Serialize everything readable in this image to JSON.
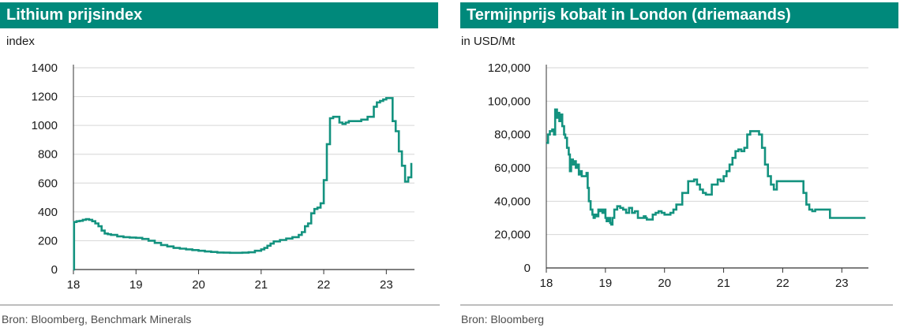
{
  "chart_data": [
    {
      "type": "line",
      "title": "Lithium prijsindex",
      "unit_label": "index",
      "source": "Bron: Bloomberg, Benchmark Minerals",
      "xlabel": "",
      "ylabel": "",
      "x_ticks": [
        18,
        19,
        20,
        21,
        22,
        23
      ],
      "xlim": [
        18,
        23.45
      ],
      "y_ticks": [
        "0",
        "200",
        "400",
        "600",
        "800",
        "1000",
        "1200",
        "1400"
      ],
      "ylim": [
        0,
        1400
      ],
      "grid": true,
      "line_color": "#13927f",
      "series": [
        {
          "x": [
            18.0,
            18.01,
            18.05,
            18.1,
            18.15,
            18.2,
            18.25,
            18.3,
            18.35,
            18.4,
            18.45,
            18.5,
            18.55,
            18.6,
            18.7,
            18.8,
            18.9,
            19.0,
            19.1,
            19.2,
            19.3,
            19.4,
            19.5,
            19.6,
            19.7,
            19.8,
            19.9,
            20.0,
            20.1,
            20.2,
            20.3,
            20.4,
            20.5,
            20.6,
            20.7,
            20.8,
            20.9,
            21.0,
            21.05,
            21.1,
            21.15,
            21.2,
            21.3,
            21.4,
            21.5,
            21.6,
            21.65,
            21.7,
            21.75,
            21.8,
            21.85,
            21.9,
            21.95,
            22.0,
            22.05,
            22.1,
            22.15,
            22.2,
            22.25,
            22.3,
            22.35,
            22.4,
            22.5,
            22.6,
            22.7,
            22.8,
            22.85,
            22.9,
            22.95,
            23.0,
            23.05,
            23.1,
            23.15,
            23.2,
            23.25,
            23.3,
            23.35,
            23.4
          ],
          "y": [
            0,
            330,
            335,
            338,
            345,
            350,
            345,
            335,
            320,
            300,
            270,
            250,
            245,
            240,
            230,
            225,
            222,
            220,
            212,
            200,
            185,
            170,
            160,
            150,
            145,
            140,
            135,
            130,
            125,
            122,
            118,
            117,
            116,
            116,
            117,
            120,
            130,
            140,
            150,
            165,
            180,
            195,
            205,
            215,
            225,
            240,
            260,
            300,
            320,
            390,
            420,
            430,
            460,
            620,
            870,
            1050,
            1060,
            1060,
            1020,
            1010,
            1020,
            1030,
            1030,
            1040,
            1060,
            1130,
            1160,
            1170,
            1180,
            1190,
            1190,
            1030,
            960,
            820,
            720,
            610,
            640,
            740
          ]
        }
      ]
    },
    {
      "type": "line",
      "title": "Termijnprijs kobalt in London (driemaands)",
      "unit_label": "in USD/Mt",
      "source": "Bron: Bloomberg",
      "xlabel": "",
      "ylabel": "",
      "x_ticks": [
        18,
        19,
        20,
        21,
        22,
        23
      ],
      "xlim": [
        18,
        23.45
      ],
      "y_ticks": [
        "0",
        "20,000",
        "40,000",
        "60,000",
        "80,000",
        "100,000",
        "120,000"
      ],
      "ylim": [
        0,
        120000
      ],
      "grid": true,
      "line_color": "#13927f",
      "series": [
        {
          "x": [
            18.0,
            18.03,
            18.06,
            18.1,
            18.13,
            18.15,
            18.18,
            18.2,
            18.22,
            18.25,
            18.27,
            18.3,
            18.32,
            18.35,
            18.38,
            18.4,
            18.42,
            18.45,
            18.47,
            18.5,
            18.52,
            18.55,
            18.58,
            18.6,
            18.62,
            18.65,
            18.68,
            18.7,
            18.72,
            18.75,
            18.78,
            18.8,
            18.82,
            18.85,
            18.88,
            18.9,
            18.92,
            18.95,
            18.98,
            19.0,
            19.02,
            19.05,
            19.08,
            19.1,
            19.12,
            19.15,
            19.2,
            19.25,
            19.3,
            19.35,
            19.4,
            19.45,
            19.5,
            19.55,
            19.6,
            19.62,
            19.65,
            19.68,
            19.7,
            19.75,
            19.8,
            19.85,
            19.9,
            19.95,
            20.0,
            20.05,
            20.1,
            20.15,
            20.2,
            20.3,
            20.4,
            20.5,
            20.55,
            20.6,
            20.65,
            20.7,
            20.8,
            20.9,
            20.95,
            21.0,
            21.05,
            21.1,
            21.15,
            21.2,
            21.25,
            21.3,
            21.35,
            21.4,
            21.45,
            21.5,
            21.55,
            21.6,
            21.65,
            21.7,
            21.75,
            21.8,
            21.85,
            21.9,
            21.95,
            22.0,
            22.05,
            22.1,
            22.15,
            22.2,
            22.25,
            22.3,
            22.35,
            22.4,
            22.45,
            22.5,
            22.55,
            22.6,
            22.65,
            22.7,
            22.75,
            22.8,
            22.85,
            22.9,
            22.95,
            23.0,
            23.05,
            23.1,
            23.15,
            23.2,
            23.25,
            23.3,
            23.35,
            23.4
          ],
          "y": [
            75000,
            80000,
            82000,
            83000,
            80000,
            95000,
            90000,
            93000,
            88000,
            92000,
            85000,
            80000,
            78000,
            72000,
            68000,
            58000,
            65000,
            62000,
            64000,
            60000,
            62000,
            56000,
            58000,
            55000,
            55000,
            55000,
            57000,
            48000,
            40000,
            35000,
            32000,
            30000,
            32000,
            31000,
            35000,
            34000,
            35000,
            33000,
            35000,
            30000,
            28000,
            30000,
            27000,
            26000,
            30000,
            35000,
            37000,
            36000,
            35000,
            33000,
            36000,
            33000,
            34000,
            30000,
            30000,
            30000,
            31000,
            30000,
            29000,
            29000,
            32000,
            33000,
            34000,
            33000,
            32000,
            32000,
            33000,
            35000,
            38000,
            45000,
            52000,
            53000,
            50000,
            47000,
            45000,
            44000,
            50000,
            53000,
            52000,
            55000,
            58000,
            62000,
            66000,
            70000,
            71000,
            70000,
            72000,
            80000,
            82000,
            82000,
            82000,
            80000,
            72000,
            62000,
            55000,
            50000,
            47000,
            52000,
            52000,
            52000,
            52000,
            52000,
            52000,
            52000,
            52000,
            52000,
            45000,
            38000,
            35000,
            34000,
            35000,
            35000,
            35000,
            35000,
            35000,
            30000,
            30000,
            30000,
            30000,
            30000,
            30000,
            30000,
            30000,
            30000,
            30000,
            30000,
            30000,
            30000
          ]
        }
      ]
    }
  ]
}
